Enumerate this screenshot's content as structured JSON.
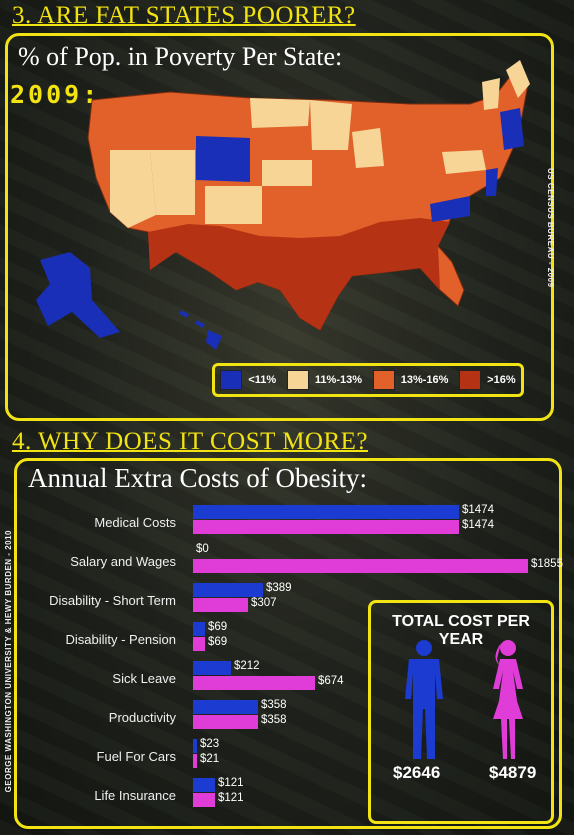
{
  "section3": {
    "header": "3. ARE FAT STATES POORER?",
    "title": "% of Pop. in Poverty Per State:",
    "year": "2009:",
    "source": "US CENSUS BUREAU - 2009"
  },
  "legend": [
    {
      "label": "<11%",
      "color": "#1a2fb8"
    },
    {
      "label": "11%-13%",
      "color": "#f6d597"
    },
    {
      "label": "13%-16%",
      "color": "#e2602a"
    },
    {
      "label": ">16%",
      "color": "#b53214"
    }
  ],
  "section4": {
    "header": "4. WHY DOES IT COST MORE?",
    "title": "Annual Extra Costs of Obesity:",
    "source": "GEORGE WASHINGTON UNIVERSITY & HEWY BURDEN - 2010"
  },
  "chart_data": {
    "type": "bar",
    "orientation": "horizontal",
    "title": "Annual Extra Costs of Obesity:",
    "categories": [
      "Medical Costs",
      "Salary and Wages",
      "Disability - Short Term",
      "Disability - Pension",
      "Sick Leave",
      "Productivity",
      "Fuel For Cars",
      "Life Insurance"
    ],
    "series": [
      {
        "color": "#1c3bd0",
        "values": [
          1474,
          0,
          389,
          69,
          212,
          358,
          23,
          121
        ],
        "labels": [
          "$1474",
          "$0",
          "$389",
          "$69",
          "$212",
          "$358",
          "$23",
          "$121"
        ]
      },
      {
        "color": "#e03cd8",
        "values": [
          1474,
          1855,
          307,
          69,
          674,
          358,
          21,
          121
        ],
        "labels": [
          "$1474",
          "$1855",
          "$307",
          "$69",
          "$674",
          "$358",
          "$21",
          "$121"
        ]
      }
    ],
    "xlim": [
      0,
      1855
    ]
  },
  "totals": {
    "title": "TOTAL COST PER YEAR",
    "male": "$2646",
    "female": "$4879",
    "male_color": "#1c3bd0",
    "female_color": "#e03cd8"
  }
}
